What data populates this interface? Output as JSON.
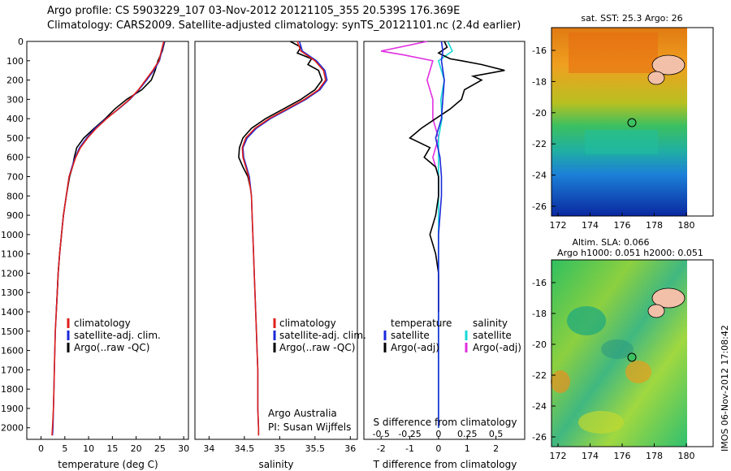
{
  "header": {
    "line1": "Argo profile: CS 5903229_107 03-Nov-2012 20121105_355 20.539S 176.369E",
    "line2": "Climatology: CARS2009. Satellite-adjusted climatology: synTS_20121101.nc (2.4d earlier)"
  },
  "colors": {
    "clim": "#e0201a",
    "sat": "#1a2ad8",
    "argo": "#000000",
    "sal_sat": "#19d8d8",
    "sal_argo": "#e030e0"
  },
  "depth_axis": {
    "ticks": [
      0,
      100,
      200,
      300,
      400,
      500,
      600,
      700,
      800,
      900,
      1000,
      1100,
      1200,
      1300,
      1400,
      1500,
      1600,
      1700,
      1800,
      1900,
      2000
    ]
  },
  "panels": {
    "temperature": {
      "xlabel": "temperature (deg C)",
      "xticks": [
        "0",
        "5",
        "10",
        "15",
        "20",
        "25",
        "30"
      ],
      "legend": [
        "climatology",
        "satellite-adj. clim.",
        "Argo(..raw -QC)"
      ]
    },
    "salinity": {
      "xlabel": "salinity",
      "xticks": [
        "34",
        "34.5",
        "35",
        "35.5",
        "36"
      ],
      "legend": [
        "climatology",
        "satellite-adj. clim.",
        "Argo(..raw -QC)"
      ],
      "credit1": "Argo Australia",
      "credit2": "PI: Susan Wijffels"
    },
    "difference": {
      "xlabel_bottom": "T difference from climatology",
      "xlabel_top": "S difference from climatology",
      "xticks_bottom": [
        "-2",
        "-1",
        "0",
        "1",
        "2"
      ],
      "xticks_top": [
        "-0.5",
        "-0.25",
        "0",
        "0.25",
        "0.5"
      ],
      "legend_t_title": "temperature",
      "legend_s_title": "salinity",
      "legend_t": [
        "satellite",
        "Argo(-adj)"
      ],
      "legend_s": [
        "satellite",
        "Argo(-adj)"
      ]
    }
  },
  "maps": {
    "sst_title": "sat. SST: 25.3 Argo: 26",
    "sla_title1": "Altim. SLA: 0.066",
    "sla_title2": "Argo h1000: 0.051 h2000: 0.051",
    "lat_ticks": [
      "-16",
      "-18",
      "-20",
      "-22",
      "-24",
      "-26"
    ],
    "lon_ticks": [
      "172",
      "174",
      "176",
      "178",
      "180"
    ]
  },
  "footer": "IMOS 06-Nov-2012 17:08:42",
  "chart_data": [
    {
      "type": "line",
      "title": "",
      "xlabel": "temperature (deg C)",
      "ylabel": "",
      "xlim": [
        -3,
        31
      ],
      "ylim": [
        2060,
        0
      ],
      "series": [
        {
          "name": "climatology",
          "points": [
            [
              25.8,
              0
            ],
            [
              25.3,
              50
            ],
            [
              24.8,
              100
            ],
            [
              23.5,
              150
            ],
            [
              22.0,
              200
            ],
            [
              20.5,
              250
            ],
            [
              18.6,
              300
            ],
            [
              16.2,
              350
            ],
            [
              13.8,
              400
            ],
            [
              11.6,
              450
            ],
            [
              9.8,
              500
            ],
            [
              8.3,
              550
            ],
            [
              7.3,
              600
            ],
            [
              6.6,
              650
            ],
            [
              5.9,
              700
            ],
            [
              5.3,
              800
            ],
            [
              4.7,
              900
            ],
            [
              4.3,
              1000
            ],
            [
              3.9,
              1100
            ],
            [
              3.6,
              1200
            ],
            [
              3.4,
              1300
            ],
            [
              3.2,
              1400
            ],
            [
              3.0,
              1500
            ],
            [
              2.9,
              1600
            ],
            [
              2.8,
              1700
            ],
            [
              2.7,
              1800
            ],
            [
              2.6,
              1900
            ],
            [
              2.4,
              2000
            ],
            [
              2.3,
              2040
            ]
          ]
        },
        {
          "name": "satellite-adj. clim.",
          "points": [
            [
              25.9,
              0
            ],
            [
              25.4,
              50
            ],
            [
              24.9,
              100
            ],
            [
              23.7,
              150
            ],
            [
              22.2,
              200
            ],
            [
              20.6,
              250
            ],
            [
              18.7,
              300
            ],
            [
              16.3,
              350
            ],
            [
              13.7,
              400
            ],
            [
              11.4,
              450
            ],
            [
              9.6,
              500
            ],
            [
              8.1,
              550
            ],
            [
              7.2,
              600
            ],
            [
              6.5,
              650
            ],
            [
              5.9,
              700
            ],
            [
              5.3,
              800
            ],
            [
              4.7,
              900
            ],
            [
              4.3,
              1000
            ],
            [
              3.9,
              1100
            ],
            [
              3.6,
              1200
            ],
            [
              3.4,
              1300
            ],
            [
              3.2,
              1400
            ],
            [
              3.0,
              1500
            ],
            [
              2.9,
              1600
            ],
            [
              2.8,
              1700
            ],
            [
              2.7,
              1800
            ],
            [
              2.6,
              1900
            ],
            [
              2.5,
              2000
            ],
            [
              2.4,
              2040
            ]
          ]
        },
        {
          "name": "Argo(..raw -QC)",
          "points": [
            [
              26.0,
              0
            ],
            [
              25.5,
              50
            ],
            [
              24.6,
              100
            ],
            [
              24.0,
              150
            ],
            [
              23.2,
              200
            ],
            [
              21.2,
              250
            ],
            [
              18.0,
              300
            ],
            [
              15.5,
              350
            ],
            [
              13.5,
              400
            ],
            [
              11.2,
              450
            ],
            [
              9.0,
              500
            ],
            [
              7.5,
              550
            ],
            [
              7.0,
              600
            ],
            [
              6.6,
              650
            ],
            [
              6.0,
              700
            ],
            [
              5.3,
              800
            ],
            [
              4.7,
              900
            ],
            [
              4.3,
              1000
            ],
            [
              3.9,
              1100
            ],
            [
              3.6,
              1200
            ],
            [
              3.4,
              1300
            ],
            [
              3.2,
              1400
            ]
          ]
        }
      ]
    },
    {
      "type": "line",
      "title": "",
      "xlabel": "salinity",
      "ylabel": "",
      "xlim": [
        33.8,
        36.1
      ],
      "ylim": [
        2060,
        0
      ],
      "series": [
        {
          "name": "climatology",
          "points": [
            [
              35.25,
              0
            ],
            [
              35.3,
              50
            ],
            [
              35.5,
              100
            ],
            [
              35.62,
              150
            ],
            [
              35.65,
              200
            ],
            [
              35.55,
              250
            ],
            [
              35.35,
              300
            ],
            [
              35.1,
              350
            ],
            [
              34.85,
              400
            ],
            [
              34.65,
              450
            ],
            [
              34.52,
              500
            ],
            [
              34.47,
              550
            ],
            [
              34.48,
              600
            ],
            [
              34.52,
              650
            ],
            [
              34.56,
              700
            ],
            [
              34.6,
              800
            ],
            [
              34.61,
              900
            ],
            [
              34.62,
              1000
            ],
            [
              34.63,
              1100
            ],
            [
              34.64,
              1200
            ],
            [
              34.65,
              1300
            ],
            [
              34.66,
              1400
            ],
            [
              34.67,
              1500
            ],
            [
              34.68,
              1600
            ],
            [
              34.69,
              1700
            ],
            [
              34.69,
              1800
            ],
            [
              34.69,
              1900
            ],
            [
              34.7,
              2000
            ],
            [
              34.7,
              2040
            ]
          ]
        },
        {
          "name": "satellite-adj. clim.",
          "points": [
            [
              35.28,
              0
            ],
            [
              35.32,
              50
            ],
            [
              35.52,
              100
            ],
            [
              35.64,
              150
            ],
            [
              35.67,
              200
            ],
            [
              35.57,
              250
            ],
            [
              35.37,
              300
            ],
            [
              35.12,
              350
            ],
            [
              34.87,
              400
            ],
            [
              34.67,
              450
            ],
            [
              34.54,
              500
            ],
            [
              34.48,
              550
            ],
            [
              34.49,
              600
            ],
            [
              34.53,
              650
            ],
            [
              34.57,
              700
            ],
            [
              34.6,
              800
            ],
            [
              34.61,
              900
            ],
            [
              34.62,
              1000
            ],
            [
              34.63,
              1100
            ],
            [
              34.64,
              1200
            ],
            [
              34.65,
              1300
            ],
            [
              34.66,
              1400
            ],
            [
              34.67,
              1500
            ],
            [
              34.68,
              1600
            ],
            [
              34.69,
              1700
            ],
            [
              34.69,
              1800
            ],
            [
              34.69,
              1900
            ],
            [
              34.7,
              2000
            ],
            [
              34.7,
              2040
            ]
          ]
        },
        {
          "name": "Argo(..raw -QC)",
          "points": [
            [
              35.15,
              0
            ],
            [
              35.3,
              30
            ],
            [
              35.25,
              60
            ],
            [
              35.45,
              90
            ],
            [
              35.4,
              120
            ],
            [
              35.55,
              150
            ],
            [
              35.6,
              200
            ],
            [
              35.5,
              250
            ],
            [
              35.3,
              300
            ],
            [
              35.05,
              350
            ],
            [
              34.8,
              400
            ],
            [
              34.6,
              450
            ],
            [
              34.48,
              500
            ],
            [
              34.43,
              550
            ],
            [
              34.42,
              600
            ],
            [
              34.48,
              650
            ],
            [
              34.55,
              700
            ],
            [
              34.58,
              750
            ]
          ]
        }
      ]
    },
    {
      "type": "line",
      "title": "",
      "xlabel": "T difference from climatology",
      "ylabel": "",
      "xlim": [
        -2.6,
        3.0
      ],
      "ylim": [
        2060,
        0
      ],
      "series": [
        {
          "name": "temperature satellite",
          "points": [
            [
              0.1,
              0
            ],
            [
              0.15,
              50
            ],
            [
              0.1,
              100
            ],
            [
              0.2,
              200
            ],
            [
              0.15,
              300
            ],
            [
              0.1,
              400
            ],
            [
              -0.1,
              500
            ],
            [
              0.05,
              600
            ],
            [
              0.1,
              700
            ],
            [
              0.1,
              800
            ],
            [
              0.05,
              900
            ],
            [
              0.0,
              1000
            ],
            [
              0,
              1500
            ],
            [
              0,
              2000
            ]
          ]
        },
        {
          "name": "temperature Argo(-adj)",
          "points": [
            [
              0.2,
              0
            ],
            [
              0.3,
              30
            ],
            [
              0.0,
              60
            ],
            [
              0.4,
              90
            ],
            [
              0.8,
              100
            ],
            [
              1.5,
              120
            ],
            [
              2.3,
              150
            ],
            [
              1.2,
              180
            ],
            [
              1.5,
              200
            ],
            [
              0.9,
              250
            ],
            [
              0.8,
              300
            ],
            [
              0.4,
              350
            ],
            [
              -0.1,
              400
            ],
            [
              -0.6,
              450
            ],
            [
              -1.0,
              500
            ],
            [
              -0.3,
              550
            ],
            [
              -0.5,
              600
            ],
            [
              -0.1,
              650
            ],
            [
              0.0,
              700
            ],
            [
              0.0,
              800
            ],
            [
              -0.1,
              900
            ],
            [
              -0.3,
              1000
            ],
            [
              -0.1,
              1100
            ],
            [
              0.0,
              1200
            ],
            [
              0.0,
              1300
            ],
            [
              0.0,
              1400
            ]
          ]
        },
        {
          "name": "salinity satellite",
          "points": [
            [
              0.08,
              0
            ],
            [
              0.12,
              50
            ],
            [
              0.0,
              100
            ],
            [
              0.05,
              200
            ],
            [
              0.02,
              300
            ],
            [
              0.03,
              400
            ],
            [
              0.0,
              500
            ],
            [
              0.0,
              600
            ],
            [
              0.0,
              800
            ],
            [
              0.0,
              1000
            ],
            [
              0,
              1500
            ],
            [
              0,
              2000
            ]
          ]
        },
        {
          "name": "salinity Argo(-adj)",
          "points": [
            [
              -0.1,
              0
            ],
            [
              -0.5,
              50
            ],
            [
              -0.3,
              70
            ],
            [
              -0.05,
              100
            ],
            [
              -0.1,
              200
            ],
            [
              -0.05,
              300
            ],
            [
              -0.05,
              400
            ],
            [
              0.0,
              500
            ],
            [
              -0.05,
              600
            ],
            [
              0.0,
              700
            ],
            [
              0.0,
              800
            ]
          ]
        }
      ]
    }
  ]
}
